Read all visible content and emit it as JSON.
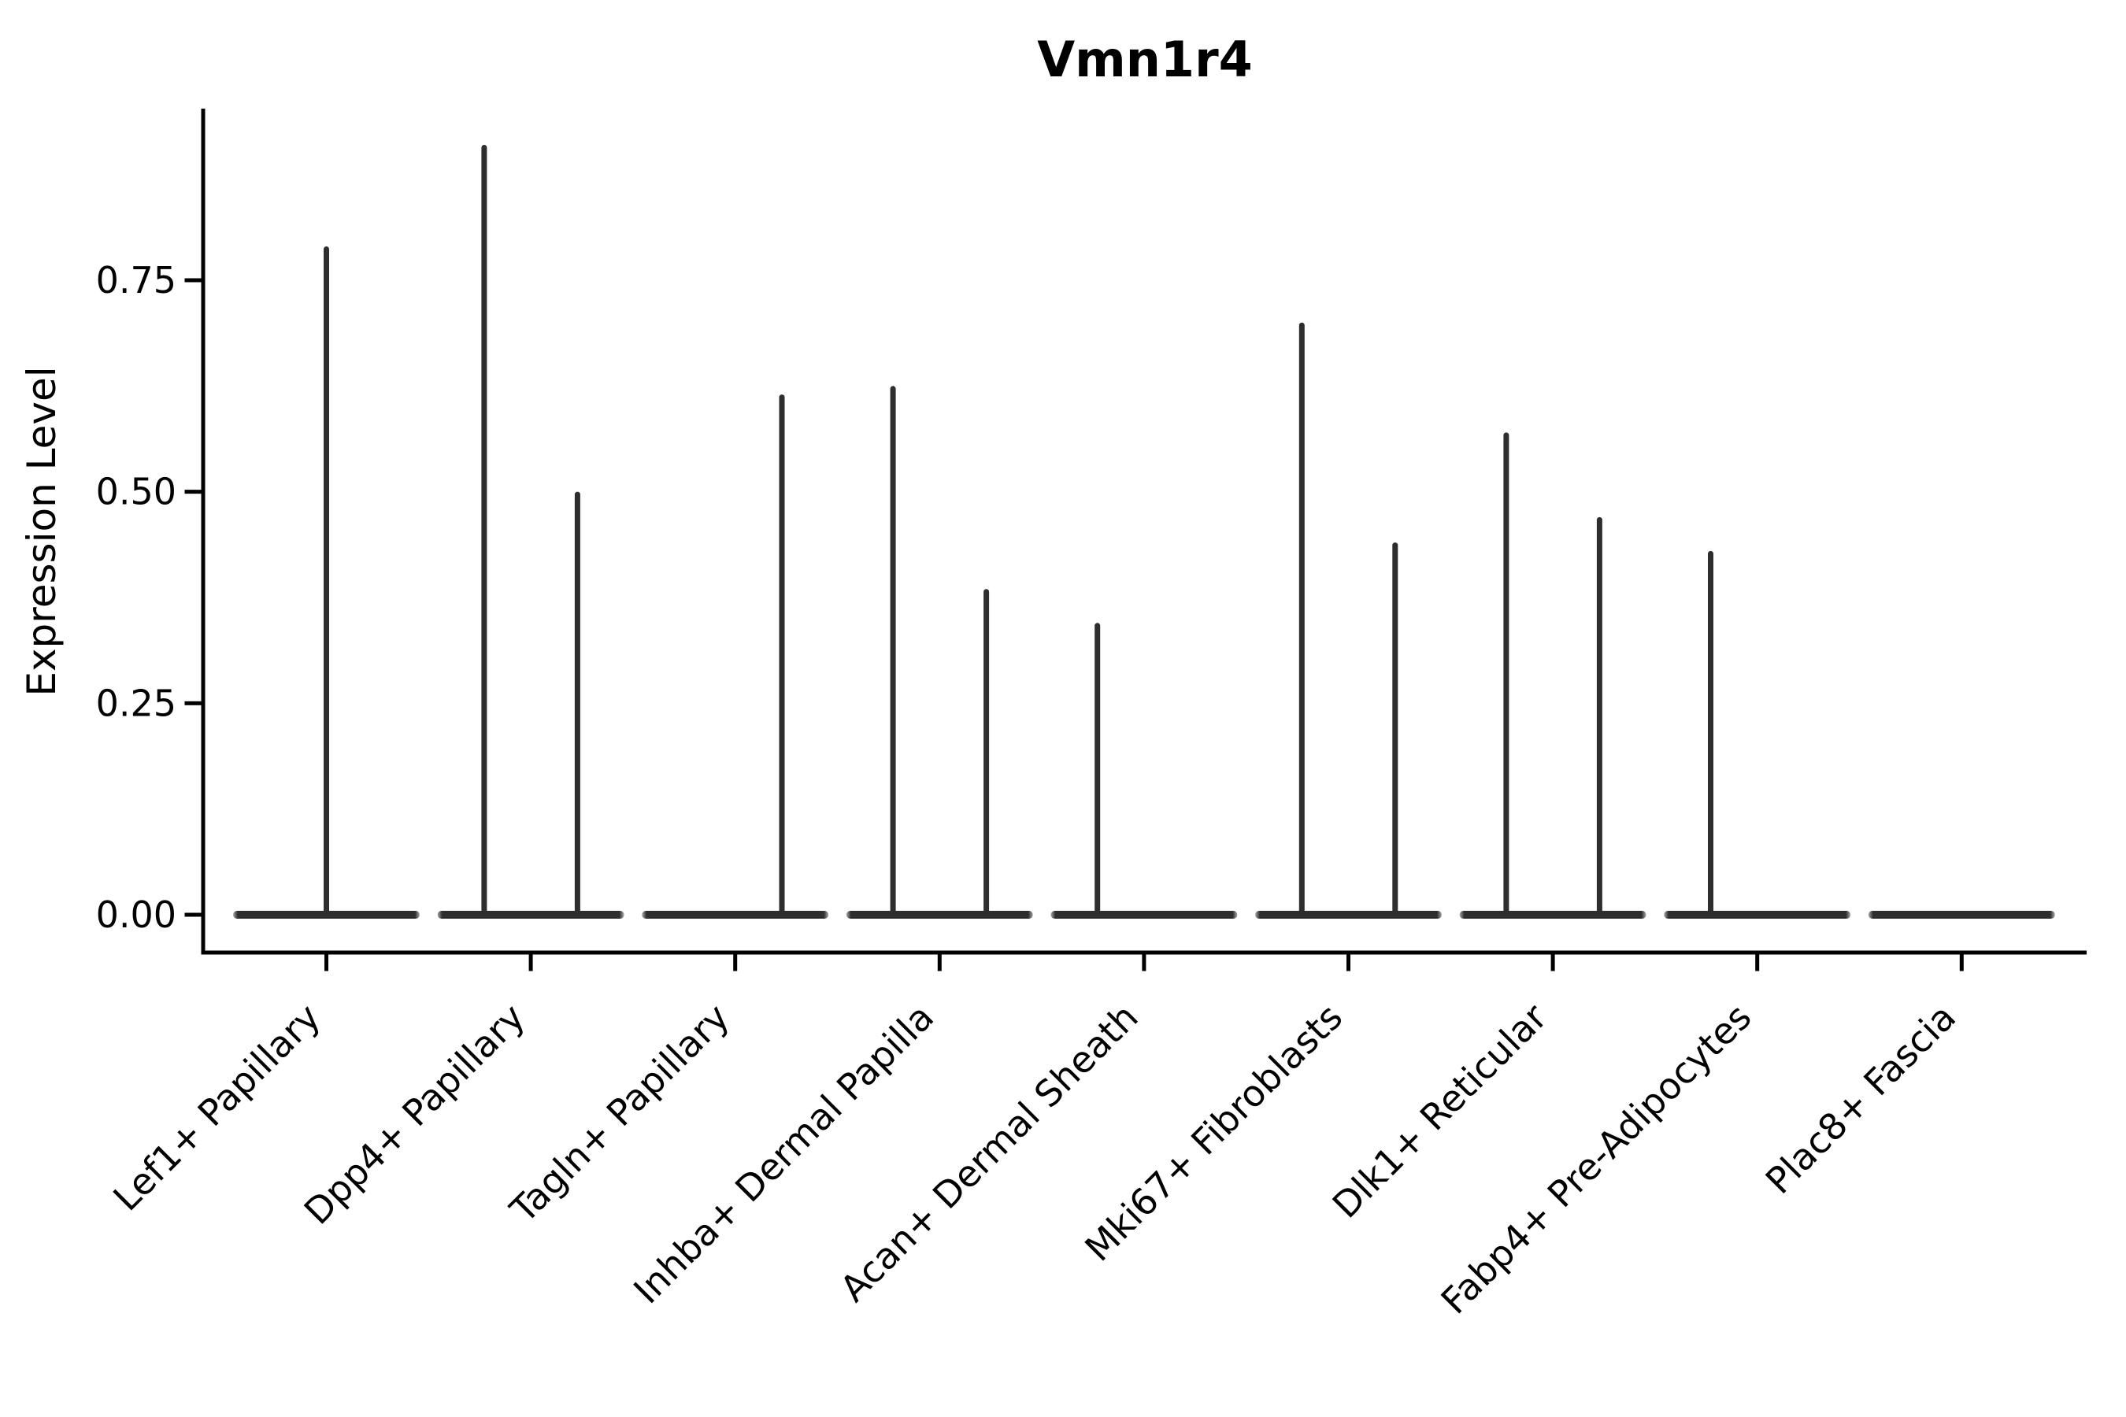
{
  "figure": {
    "background": "#ffffff"
  },
  "chart_data": {
    "type": "violin",
    "title": "Vmn1r4",
    "xlabel": "",
    "ylabel": "Expression Level",
    "ylim": [
      0,
      0.95
    ],
    "yticks": [
      0,
      0.25,
      0.5,
      0.75
    ],
    "ytick_labels": [
      "0.00",
      "0.25",
      "0.50",
      "0.75"
    ],
    "grid": false,
    "legend": "none",
    "ink_color": "#2e2e2e",
    "axis_color": "#000000",
    "categories": [
      "Lef1+ Papillary",
      "Dpp4+ Papillary",
      "Tagln+ Papillary",
      "Inhba+ Dermal Papilla",
      "Acan+ Dermal Sheath",
      "Mki67+ Fibroblasts",
      "Dlk1+ Reticular",
      "Fabp4+ Pre-Adipocytes",
      "Plac8+ Fascia"
    ],
    "violins": [
      {
        "category": "Lef1+ Papillary",
        "baseline_value": 0,
        "spikes": [
          {
            "value": 0.79,
            "offset": 0
          }
        ]
      },
      {
        "category": "Dpp4+ Papillary",
        "baseline_value": 0,
        "spikes": [
          {
            "value": 0.91,
            "offset": -0.5
          },
          {
            "value": 0.5,
            "offset": 0.5
          }
        ]
      },
      {
        "category": "Tagln+ Papillary",
        "baseline_value": 0,
        "spikes": [
          {
            "value": 0.615,
            "offset": 0.5
          }
        ]
      },
      {
        "category": "Inhba+ Dermal Papilla",
        "baseline_value": 0,
        "spikes": [
          {
            "value": 0.625,
            "offset": -0.5
          },
          {
            "value": 0.385,
            "offset": 0.5
          }
        ]
      },
      {
        "category": "Acan+ Dermal Sheath",
        "baseline_value": 0,
        "spikes": [
          {
            "value": 0.345,
            "offset": -0.5
          }
        ]
      },
      {
        "category": "Mki67+ Fibroblasts",
        "baseline_value": 0,
        "spikes": [
          {
            "value": 0.7,
            "offset": -0.5
          },
          {
            "value": 0.44,
            "offset": 0.5
          }
        ]
      },
      {
        "category": "Dlk1+ Reticular",
        "baseline_value": 0,
        "spikes": [
          {
            "value": 0.57,
            "offset": -0.5
          },
          {
            "value": 0.47,
            "offset": 0.5
          }
        ]
      },
      {
        "category": "Fabp4+ Pre-Adipocytes",
        "baseline_value": 0,
        "spikes": [
          {
            "value": 0.43,
            "offset": -0.5
          }
        ]
      },
      {
        "category": "Plac8+ Fascia",
        "baseline_value": 0,
        "spikes": []
      }
    ]
  }
}
